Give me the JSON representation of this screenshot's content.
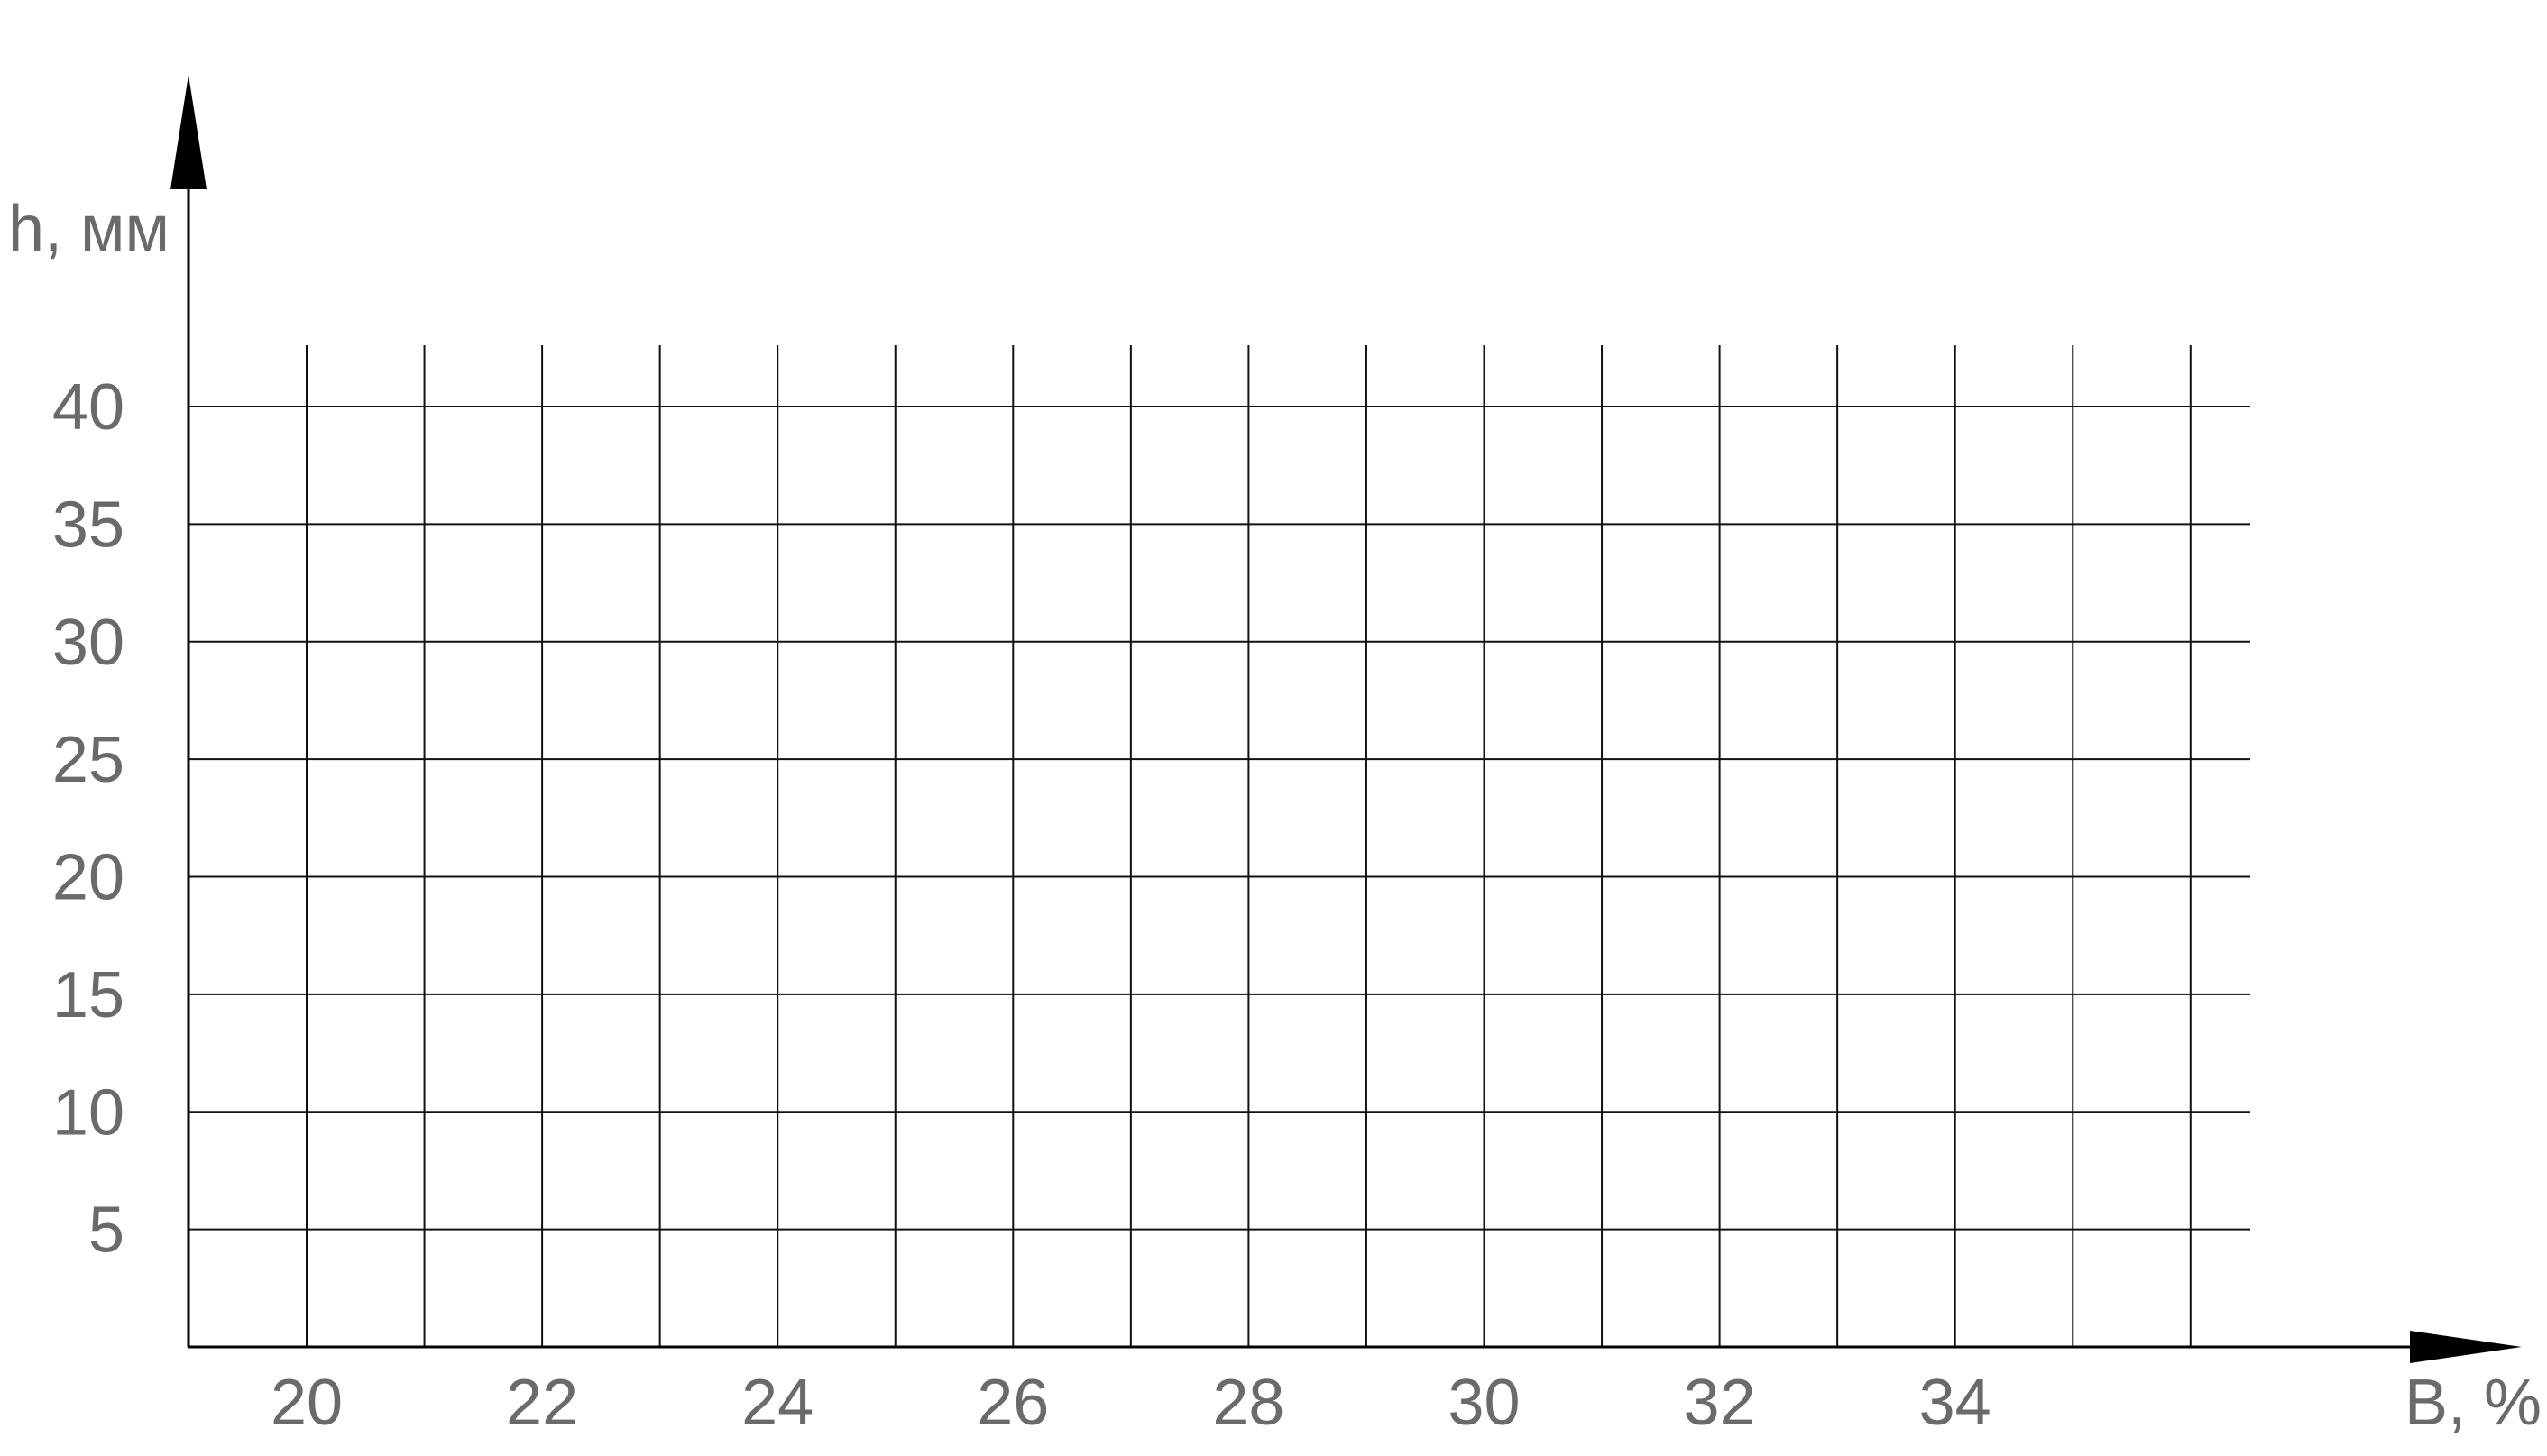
{
  "chart_data": {
    "type": "line",
    "title": "",
    "xlabel": "B, %",
    "ylabel": "h, мм",
    "xlim": [
      19,
      36
    ],
    "ylim": [
      0,
      40
    ],
    "x_ticks": [
      20,
      22,
      24,
      26,
      28,
      30,
      32,
      34
    ],
    "x_tick_labels": [
      "20",
      "22",
      "24",
      "26",
      "28",
      "30",
      "32",
      "34"
    ],
    "x_grid": [
      20,
      21,
      22,
      23,
      24,
      25,
      26,
      27,
      28,
      29,
      30,
      31,
      32,
      33,
      34,
      35,
      36
    ],
    "y_ticks": [
      5,
      10,
      15,
      20,
      25,
      30,
      35,
      40
    ],
    "y_tick_labels": [
      "5",
      "10",
      "15",
      "20",
      "25",
      "30",
      "35",
      "40"
    ],
    "grid": true,
    "series": []
  }
}
